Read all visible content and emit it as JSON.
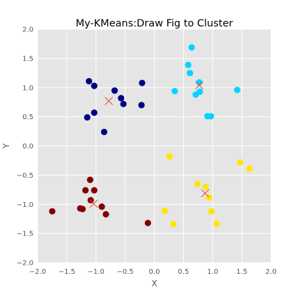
{
  "chart_data": {
    "type": "scatter",
    "title": "My-KMeans:Draw Fig to Cluster",
    "xlabel": "X",
    "ylabel": "Y",
    "xlim": [
      -2.0,
      2.0
    ],
    "ylim": [
      -2.0,
      2.0
    ],
    "xticks": [
      "−2.0",
      "−1.5",
      "−1.0",
      "−0.5",
      "0.0",
      "0.5",
      "1.0",
      "1.5",
      "2.0"
    ],
    "yticks": [
      "2.0",
      "1.5",
      "1.0",
      "0.5",
      "0.0",
      "−0.5",
      "−1.0",
      "−1.5",
      "−2.0"
    ],
    "xtick_values": [
      -2.0,
      -1.5,
      -1.0,
      -0.5,
      0.0,
      0.5,
      1.0,
      1.5,
      2.0
    ],
    "ytick_values": [
      2.0,
      1.5,
      1.0,
      0.5,
      0.0,
      -0.5,
      -1.0,
      -1.5,
      -2.0
    ],
    "grid": true,
    "background_color": "#e5e5e5",
    "grid_color": "#ffffff",
    "centroid_marker": "x",
    "centroid_color": "#e8453c",
    "series": [
      {
        "color": "#000080",
        "points": [
          [
            -1.12,
            1.11
          ],
          [
            -1.03,
            1.03
          ],
          [
            -0.68,
            0.95
          ],
          [
            -0.57,
            0.82
          ],
          [
            -0.53,
            0.72
          ],
          [
            -0.21,
            1.08
          ],
          [
            -0.22,
            0.7
          ],
          [
            -1.03,
            0.57
          ],
          [
            -1.15,
            0.49
          ],
          [
            -0.86,
            0.24
          ]
        ],
        "centroid": [
          -0.78,
          0.77
        ]
      },
      {
        "color": "#00d4ff",
        "points": [
          [
            0.64,
            1.69
          ],
          [
            0.58,
            1.39
          ],
          [
            0.61,
            1.25
          ],
          [
            0.35,
            0.94
          ],
          [
            0.77,
            1.09
          ],
          [
            0.78,
            0.93
          ],
          [
            0.71,
            0.88
          ],
          [
            0.91,
            0.51
          ],
          [
            0.97,
            0.51
          ],
          [
            1.42,
            0.96
          ]
        ],
        "centroid": [
          0.77,
          1.04
        ]
      },
      {
        "color": "#ffe600",
        "points": [
          [
            0.26,
            -0.18
          ],
          [
            0.74,
            -0.65
          ],
          [
            0.88,
            -0.7
          ],
          [
            0.94,
            -0.88
          ],
          [
            1.47,
            -0.28
          ],
          [
            1.63,
            -0.39
          ],
          [
            0.98,
            -1.12
          ],
          [
            0.18,
            -1.11
          ],
          [
            0.33,
            -1.34
          ],
          [
            1.07,
            -1.33
          ]
        ],
        "centroid": [
          0.87,
          -0.81
        ]
      },
      {
        "color": "#800000",
        "points": [
          [
            -1.1,
            -0.58
          ],
          [
            -1.18,
            -0.76
          ],
          [
            -1.03,
            -0.76
          ],
          [
            -1.09,
            -0.93
          ],
          [
            -1.27,
            -1.07
          ],
          [
            -1.23,
            -1.08
          ],
          [
            -0.9,
            -1.04
          ],
          [
            -0.83,
            -1.17
          ],
          [
            -1.75,
            -1.12
          ],
          [
            -0.11,
            -1.32
          ]
        ],
        "centroid": [
          -1.04,
          -0.99
        ]
      }
    ]
  }
}
